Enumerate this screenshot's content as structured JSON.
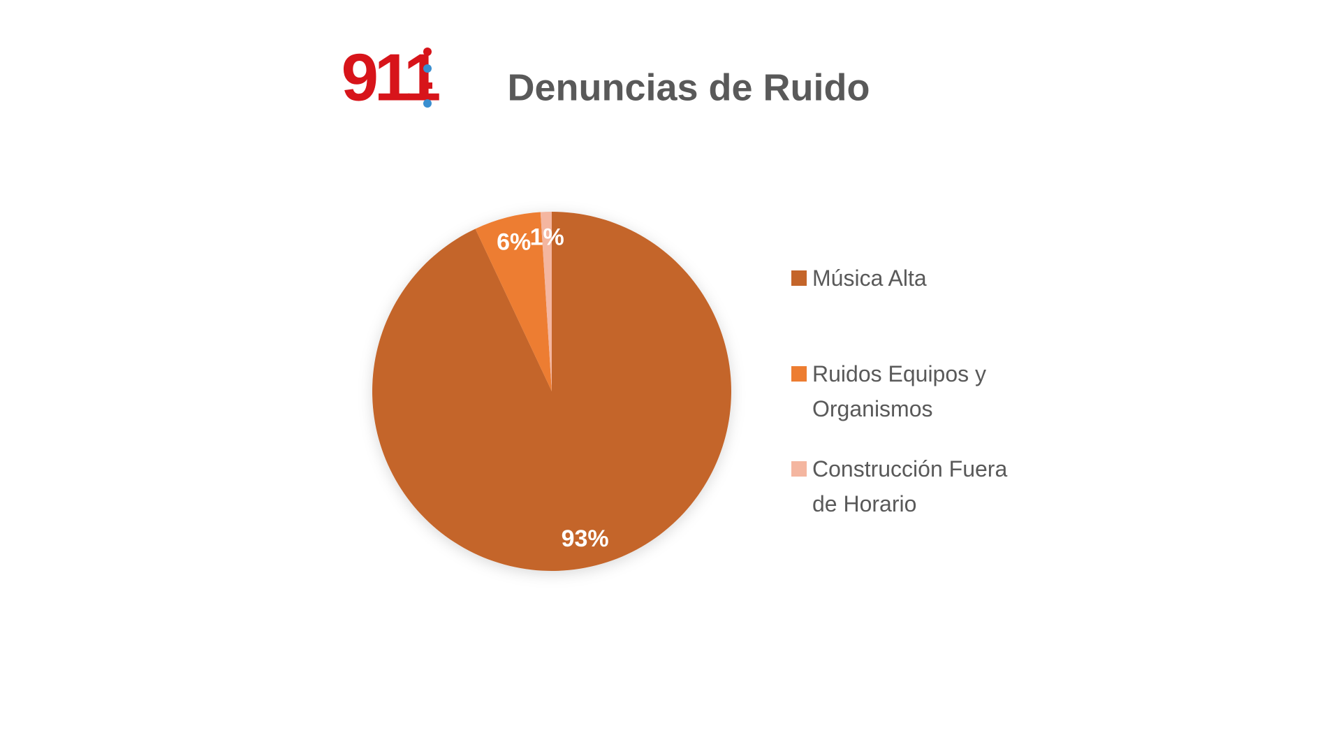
{
  "logo": "911",
  "chart_data": {
    "type": "pie",
    "title": "Denuncias de Ruido",
    "categories": [
      "Música Alta",
      "Ruidos Equipos y Organismos",
      "Construcción Fuera de Horario"
    ],
    "values": [
      93,
      6,
      1
    ],
    "value_labels": [
      "93%",
      "6%",
      "1%"
    ],
    "colors": [
      "#c4652a",
      "#ed7d31",
      "#f4b6a0"
    ],
    "legend": "right"
  }
}
